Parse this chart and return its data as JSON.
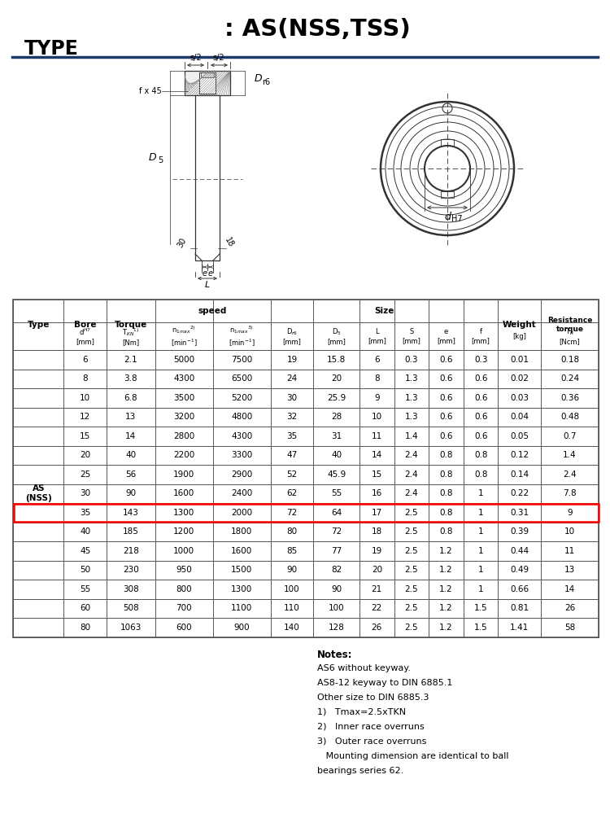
{
  "title": ": AS(NSS,TSS)",
  "subtitle": "TYPE",
  "header_line_color": "#1a3a6b",
  "table_border_color": "#555555",
  "highlight_row_index": 8,
  "highlight_row_color": "#ff0000",
  "type_label": "AS\n(NSS)",
  "table_data": [
    [
      6,
      2.1,
      5000,
      7500,
      19,
      15.8,
      6,
      0.3,
      0.6,
      0.3,
      0.01,
      0.18
    ],
    [
      8,
      3.8,
      4300,
      6500,
      24,
      20,
      8,
      1.3,
      0.6,
      0.6,
      0.02,
      0.24
    ],
    [
      10,
      6.8,
      3500,
      5200,
      30,
      25.9,
      9,
      1.3,
      0.6,
      0.6,
      0.03,
      0.36
    ],
    [
      12,
      13,
      3200,
      4800,
      32,
      28,
      10,
      1.3,
      0.6,
      0.6,
      0.04,
      0.48
    ],
    [
      15,
      14,
      2800,
      4300,
      35,
      31,
      11,
      1.4,
      0.6,
      0.6,
      0.05,
      0.7
    ],
    [
      20,
      40,
      2200,
      3300,
      47,
      40,
      14,
      2.4,
      0.8,
      0.8,
      0.12,
      1.4
    ],
    [
      25,
      56,
      1900,
      2900,
      52,
      45.9,
      15,
      2.4,
      0.8,
      0.8,
      0.14,
      2.4
    ],
    [
      30,
      90,
      1600,
      2400,
      62,
      55,
      16,
      2.4,
      0.8,
      1,
      0.22,
      7.8
    ],
    [
      35,
      143,
      1300,
      2000,
      72,
      64,
      17,
      2.5,
      0.8,
      1,
      0.31,
      9
    ],
    [
      40,
      185,
      1200,
      1800,
      80,
      72,
      18,
      2.5,
      0.8,
      1,
      0.39,
      10
    ],
    [
      45,
      218,
      1000,
      1600,
      85,
      77,
      19,
      2.5,
      1.2,
      1,
      0.44,
      11
    ],
    [
      50,
      230,
      950,
      1500,
      90,
      82,
      20,
      2.5,
      1.2,
      1,
      0.49,
      13
    ],
    [
      55,
      308,
      800,
      1300,
      100,
      90,
      21,
      2.5,
      1.2,
      1,
      0.66,
      14
    ],
    [
      60,
      508,
      700,
      1100,
      110,
      100,
      22,
      2.5,
      1.2,
      1.5,
      0.81,
      26
    ],
    [
      80,
      1063,
      600,
      900,
      140,
      128,
      26,
      2.5,
      1.2,
      1.5,
      1.41,
      58
    ]
  ],
  "notes": [
    "Notes:",
    "AS6 without keyway.",
    "AS8-12 keyway to DIN 6885.1",
    "Other size to DIN 6885.3",
    "1)   Tmax=2.5xTKN",
    "2)   Inner race overruns",
    "3)   Outer race overruns",
    "   Mounting dimension are identical to ball",
    "bearings series 62."
  ],
  "bg_color": "#ffffff",
  "text_color": "#000000"
}
